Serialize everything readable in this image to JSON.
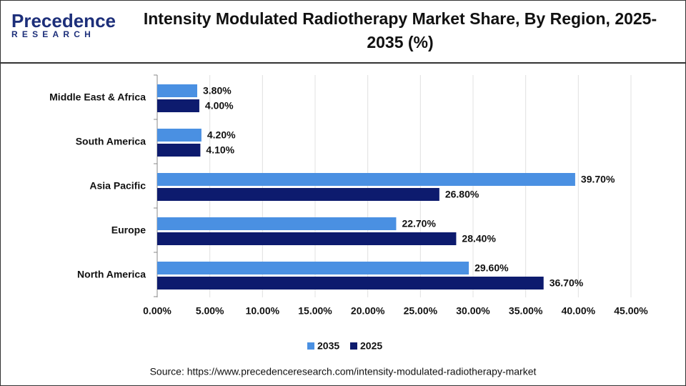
{
  "logo": {
    "name": "Precedence",
    "sub": "RESEARCH"
  },
  "chart_data": {
    "type": "hbar",
    "title": "Intensity Modulated Radiotherapy Market Share, By Region, 2025-2035 (%)",
    "categories": [
      "Middle East & Africa",
      "South America",
      "Asia Pacific",
      "Europe",
      "North America"
    ],
    "series": [
      {
        "name": "2035",
        "color": "#4a90e2",
        "values": [
          3.8,
          4.2,
          39.7,
          22.7,
          29.6
        ],
        "value_labels": [
          "3.80%",
          "4.20%",
          "39.70%",
          "22.70%",
          "29.60%"
        ]
      },
      {
        "name": "2025",
        "color": "#0d1b6e",
        "values": [
          4.0,
          4.1,
          26.8,
          28.4,
          36.7
        ],
        "value_labels": [
          "4.00%",
          "4.10%",
          "26.80%",
          "28.40%",
          "36.70%"
        ]
      }
    ],
    "xlim": [
      0,
      45
    ],
    "xticks": [
      {
        "value": 0,
        "label": "0.00%"
      },
      {
        "value": 5,
        "label": "5.00%"
      },
      {
        "value": 10,
        "label": "10.00%"
      },
      {
        "value": 15,
        "label": "15.00%"
      },
      {
        "value": 20,
        "label": "20.00%"
      },
      {
        "value": 25,
        "label": "25.00%"
      },
      {
        "value": 30,
        "label": "30.00%"
      },
      {
        "value": 35,
        "label": "35.00%"
      },
      {
        "value": 40,
        "label": "40.00%"
      },
      {
        "value": 45,
        "label": "45.00%"
      }
    ],
    "grid": true,
    "legend": "bottom",
    "source": "Source: https://www.precedenceresearch.com/intensity-modulated-radiotherapy-market"
  }
}
